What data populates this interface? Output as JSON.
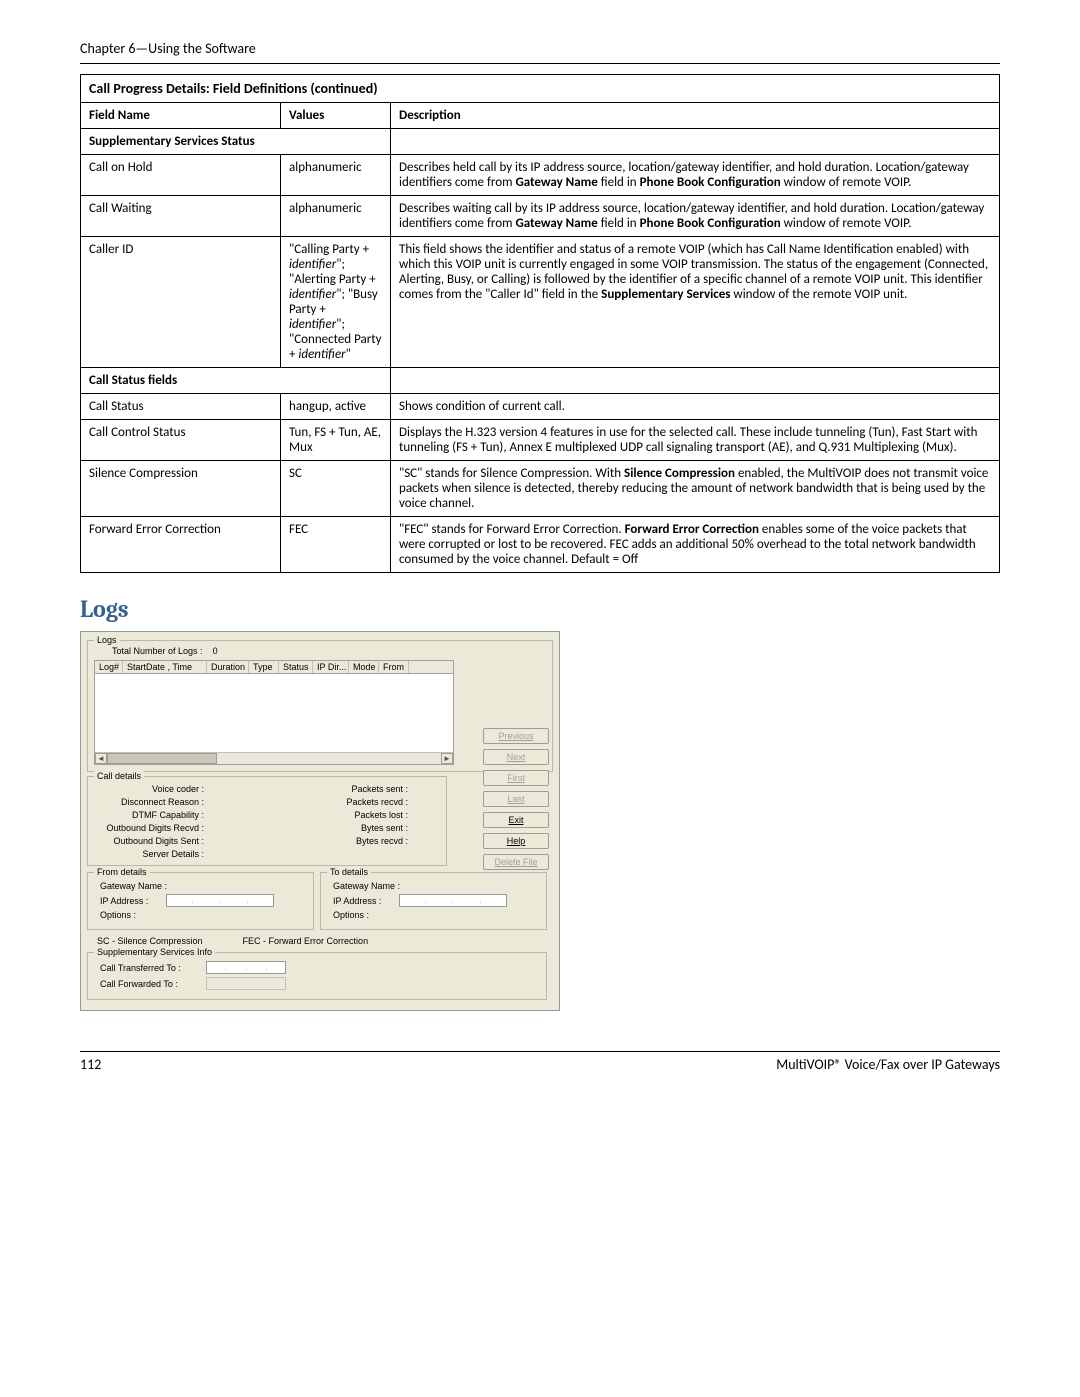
{
  "chapter": "Chapter 6—Using the Software",
  "table": {
    "title": "Call Progress Details: Field Definitions (continued)",
    "headers": {
      "field": "Field Name",
      "values": "Values",
      "desc": "Description"
    },
    "section1": "Supplementary Services Status",
    "section2": "Call Status fields",
    "rows1": [
      {
        "field": "Call on Hold",
        "values": "alphanumeric",
        "desc": "Describes held call by its IP address source, location/gateway identifier, and hold duration. Location/gateway identifiers come from <b>Gateway Name</b> field in <b>Phone Book Configuration</b> window of remote VOIP."
      },
      {
        "field": "Call Waiting",
        "values": "alphanumeric",
        "desc": "Describes waiting call by its IP address source, location/gateway identifier, and hold duration. Location/gateway identifiers come from <b>Gateway Name</b> field in <b>Phone Book Configuration</b> window of remote VOIP."
      },
      {
        "field": "Caller ID",
        "values": "\"Calling Party + <i>identifier</i>\"; \"Alerting Party + <i>identifier</i>\"; \"Busy Party + <i>identifier</i>\"; \"Connected Party + <i>identifier</i>\"",
        "desc": "This field shows the identifier and status of a remote VOIP (which has Call Name Identification enabled) with which this VOIP unit is currently engaged in some VOIP transmission. The status of the engagement (Connected, Alerting, Busy, or Calling) is followed by the identifier of a specific channel of a remote VOIP unit. This identifier comes from the \"Caller Id\" field in the <b>Supplementary Services</b> window of the remote VOIP unit."
      }
    ],
    "rows2": [
      {
        "field": "Call Status",
        "values": "hangup, active",
        "desc": "Shows condition of current call."
      },
      {
        "field": "Call Control Status",
        "values": "Tun, FS + Tun, AE, Mux",
        "desc": "Displays the H.323 version 4 features in use for the selected call. These include tunneling (Tun), Fast Start with tunneling (FS + Tun), Annex E multiplexed UDP call signaling transport (AE), and Q.931 Multiplexing (Mux)."
      },
      {
        "field": "Silence Compression",
        "values": "SC",
        "desc": "\"SC\" stands for Silence Compression. With <b>Silence Compression</b> enabled, the MultiVOIP does not transmit voice packets when silence is detected, thereby reducing the amount of network bandwidth that is being used by the voice channel."
      },
      {
        "field": "Forward Error Correction",
        "values": "FEC",
        "desc": "\"FEC\" stands for Forward Error Correction. <b>Forward Error Correction</b> enables some of the voice packets that were corrupted or lost to be recovered. FEC adds an additional 50% overhead to the total network bandwidth consumed by the voice channel. Default = Off"
      }
    ]
  },
  "logs_heading": "Logs",
  "logs": {
    "groupLabel": "Logs",
    "totalLogsLabel": "Total Number of Logs :",
    "totalLogsValue": "0",
    "listHeaders": [
      "Log#",
      "StartDate , Time",
      "Duration",
      "Type",
      "Status",
      "IP Dir...",
      "Mode",
      "From"
    ],
    "buttons": {
      "previous": "Previous",
      "next": "Next",
      "first": "First",
      "last": "Last",
      "exit": "Exit",
      "help": "Help",
      "delete": "Delete File"
    },
    "callDetails": {
      "legend": "Call details",
      "left": [
        "Voice coder :",
        "Disconnect Reason :",
        "DTMF Capability :",
        "Outbound Digits Recvd :",
        "Outbound Digits Sent :",
        "Server Details :"
      ],
      "right": [
        "Packets sent :",
        "Packets recvd :",
        "Packets lost :",
        "Bytes sent :",
        "Bytes recvd :"
      ]
    },
    "fromDetails": {
      "legend": "From details",
      "gwLabel": "Gateway Name :",
      "ipLabel": "IP Address :",
      "optLabel": "Options :"
    },
    "toDetails": {
      "legend": "To details",
      "gwLabel": "Gateway Name :",
      "ipLabel": "IP Address :",
      "optLabel": "Options :"
    },
    "legendRow": {
      "sc": "SC - Silence Compression",
      "fec": "FEC - Forward Error Correction"
    },
    "supp": {
      "legend": "Supplementary Services Info",
      "transferLabel": "Call Transferred To :",
      "forwardLabel": "Call Forwarded To :"
    }
  },
  "footer": {
    "page": "112",
    "product": "MultiVOIP® Voice/Fax over IP Gateways"
  }
}
